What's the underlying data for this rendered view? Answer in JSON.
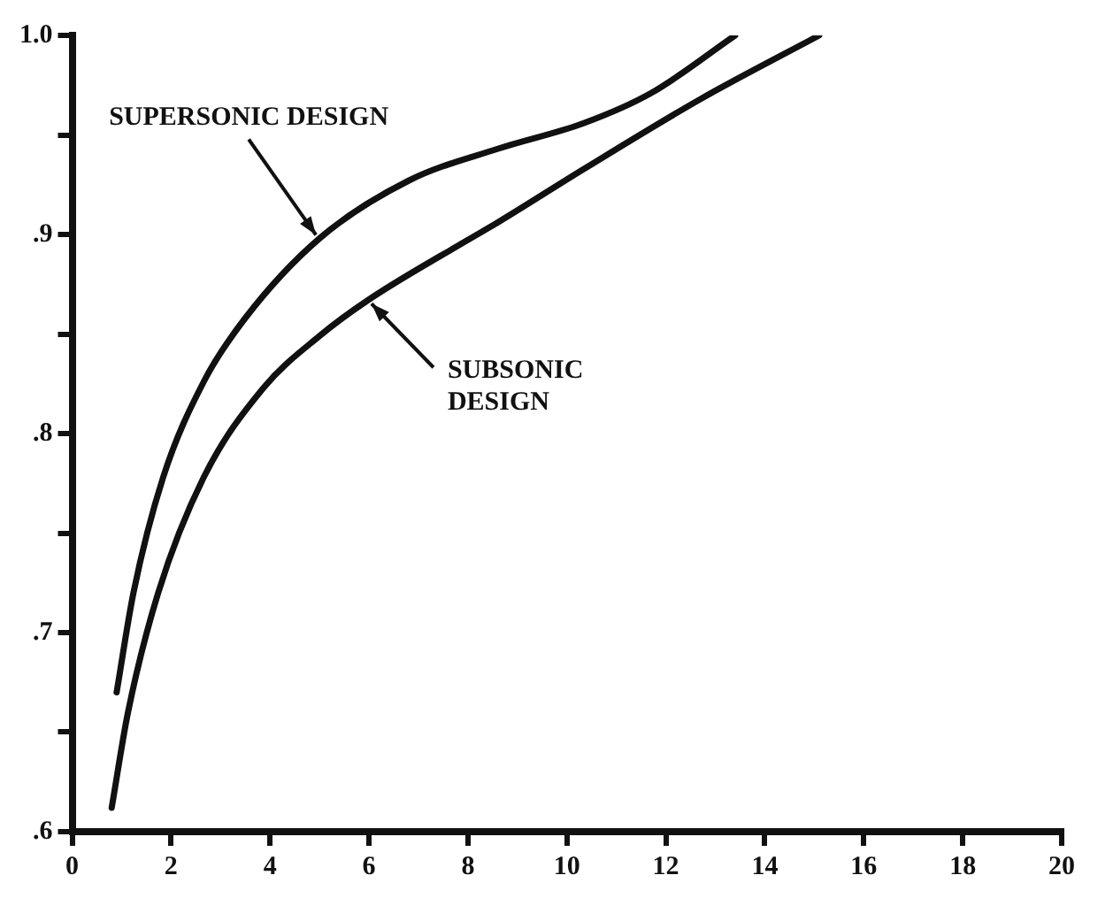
{
  "chart_data": {
    "type": "line",
    "xlim": [
      0,
      20
    ],
    "xticks": [
      0,
      2,
      4,
      6,
      8,
      10,
      12,
      14,
      16,
      18,
      20
    ],
    "ylim": [
      0.6,
      1.0
    ],
    "yticks": [
      {
        "value": 0.6,
        "label": ".6"
      },
      {
        "value": 0.65,
        "label": null
      },
      {
        "value": 0.7,
        "label": ".7"
      },
      {
        "value": 0.75,
        "label": null
      },
      {
        "value": 0.8,
        "label": ".8"
      },
      {
        "value": 0.85,
        "label": null
      },
      {
        "value": 0.9,
        "label": ".9"
      },
      {
        "value": 0.95,
        "label": null
      },
      {
        "value": 1.0,
        "label": "1.0"
      }
    ],
    "grid": false,
    "legend": false,
    "marker": "none",
    "line_style": "solid",
    "series": [
      {
        "color": "#111111",
        "x": [
          0.9,
          1.24,
          1.84,
          2.66,
          3.5,
          5.0,
          6.8,
          8.6,
          10.35,
          11.7,
          13.4
        ],
        "values": [
          0.67,
          0.72,
          0.778,
          0.826,
          0.858,
          0.898,
          0.927,
          0.943,
          0.956,
          0.971,
          1.0
        ]
      },
      {
        "color": "#111111",
        "x": [
          0.8,
          1.13,
          1.74,
          2.66,
          3.87,
          5.0,
          5.98,
          7.98,
          8.6,
          10.35,
          12.7,
          15.1
        ],
        "values": [
          0.612,
          0.66,
          0.72,
          0.778,
          0.823,
          0.849,
          0.867,
          0.897,
          0.906,
          0.933,
          0.968,
          1.0
        ]
      }
    ],
    "annotations": [
      {
        "text": "SUPERSONIC DESIGN",
        "x": 5.0,
        "y": 0.898
      },
      {
        "text": "SUBSONIC DESIGN",
        "x": 5.98,
        "y": 0.867
      }
    ]
  }
}
